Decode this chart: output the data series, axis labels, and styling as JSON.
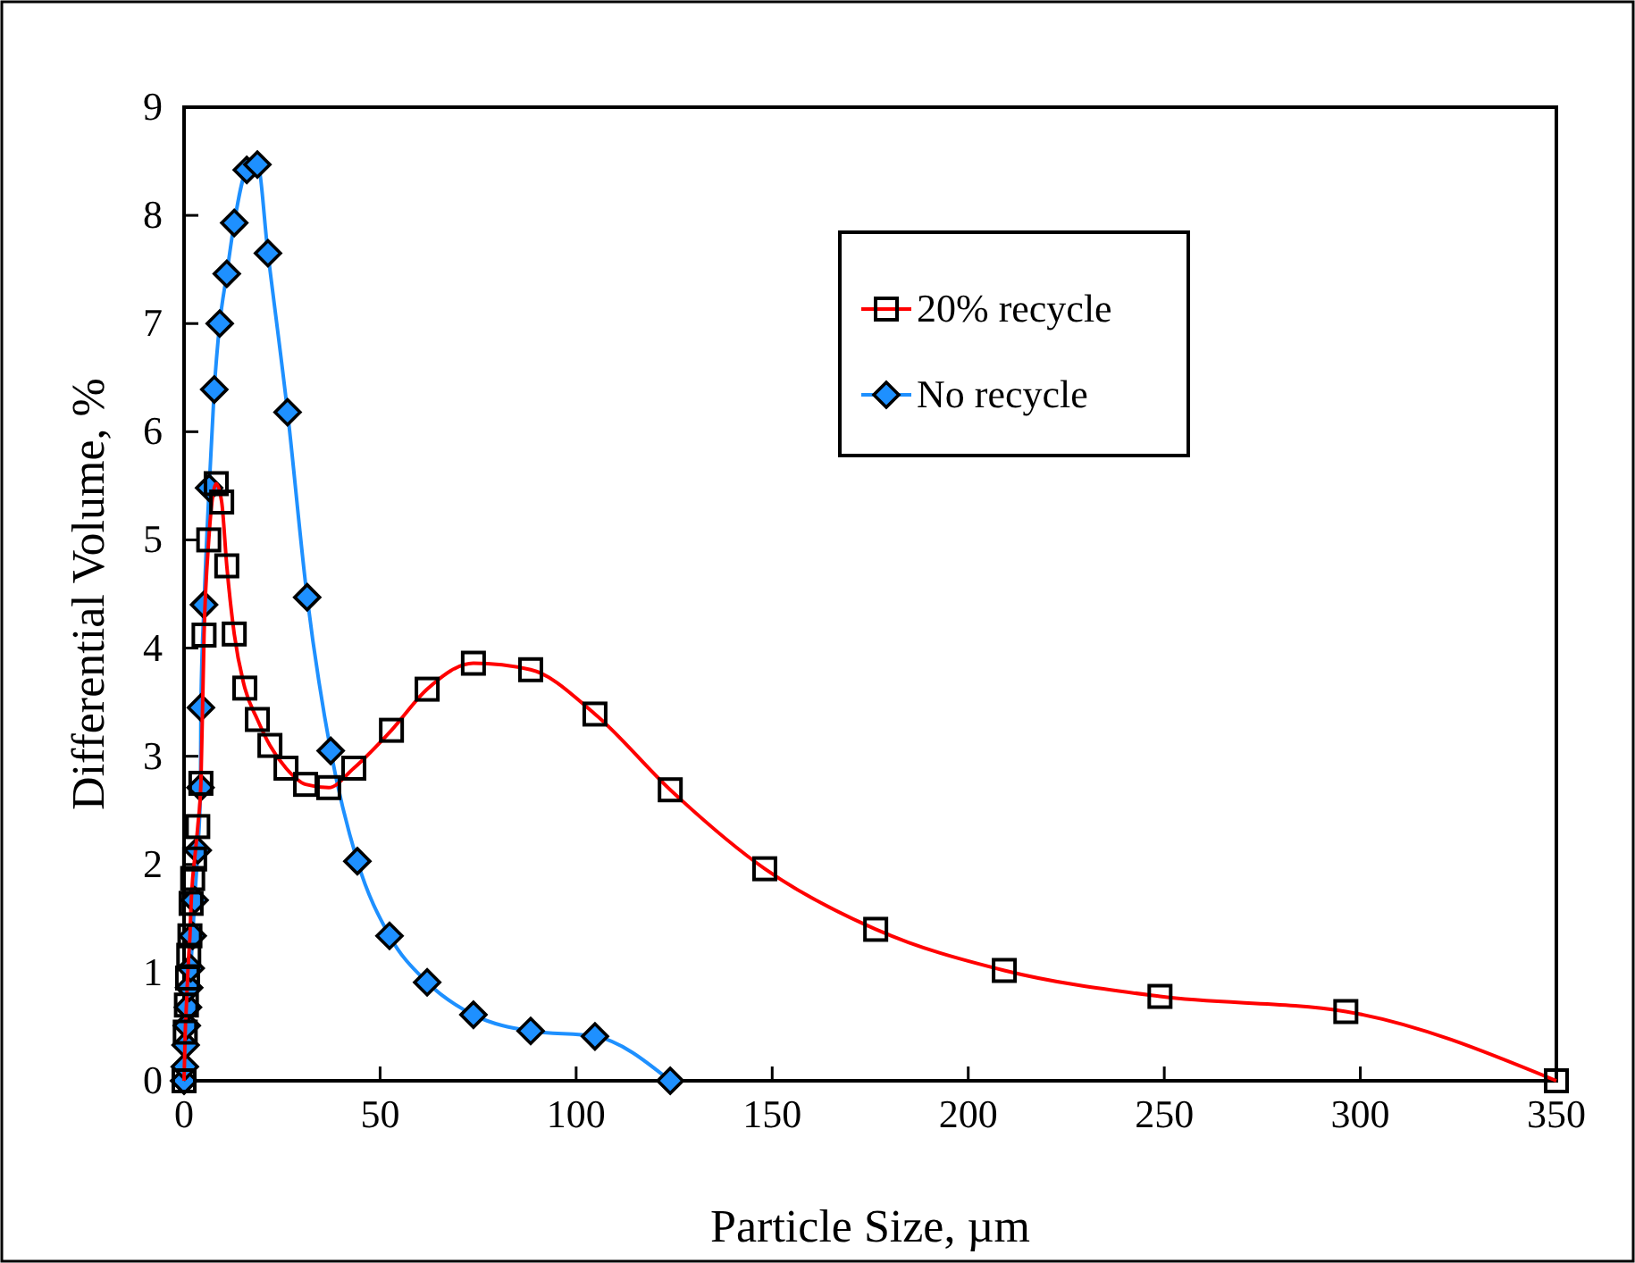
{
  "chart_data": {
    "type": "line",
    "xlabel": "Particle Size, µm",
    "ylabel": "Differential Volume, %",
    "xlim": [
      0,
      350
    ],
    "xticks": [
      0,
      50,
      100,
      150,
      200,
      250,
      300,
      350
    ],
    "ylim": [
      0,
      9
    ],
    "yticks": [
      0,
      1,
      2,
      3,
      4,
      5,
      6,
      7,
      8,
      9
    ],
    "grid": false,
    "legend": "top right",
    "series": [
      {
        "name": "20% recycle",
        "color": "#ff0000",
        "marker": "square",
        "x": [
          0,
          0.3,
          0.6,
          0.9,
          1.2,
          1.5,
          1.8,
          2.2,
          2.7,
          3.5,
          4.3,
          5.1,
          6.3,
          8.2,
          9.6,
          10.9,
          12.8,
          15.5,
          18.7,
          21.9,
          26,
          31,
          36.9,
          43.3,
          52.9,
          62,
          73.8,
          88.4,
          104.8,
          124,
          148.1,
          176.4,
          209.2,
          248.9,
          296.3,
          350
        ],
        "values": [
          0,
          0.45,
          0.7,
          0.95,
          1.16,
          1.34,
          1.64,
          1.87,
          2.05,
          2.35,
          2.75,
          4.12,
          5.0,
          5.52,
          5.35,
          4.76,
          4.13,
          3.63,
          3.34,
          3.1,
          2.89,
          2.74,
          2.71,
          2.89,
          3.24,
          3.62,
          3.86,
          3.8,
          3.39,
          2.69,
          1.96,
          1.4,
          1.02,
          0.78,
          0.64,
          0
        ]
      },
      {
        "name": "No recycle",
        "color": "#1e90ff",
        "marker": "diamond",
        "x": [
          0,
          0.2,
          0.4,
          0.7,
          1.0,
          1.3,
          1.7,
          2.2,
          2.7,
          3.5,
          4.2,
          4.3,
          5.1,
          6.4,
          7.7,
          9.1,
          10.9,
          12.8,
          16,
          18.7,
          21.4,
          26.4,
          31.4,
          37.4,
          44.2,
          52.4,
          62,
          73.8,
          88.4,
          104.8,
          124
        ],
        "values": [
          0,
          0.13,
          0.33,
          0.51,
          0.68,
          0.86,
          1.04,
          1.34,
          1.67,
          2.13,
          2.71,
          3.45,
          4.4,
          5.48,
          6.39,
          7.0,
          7.46,
          7.93,
          8.42,
          8.47,
          7.65,
          6.18,
          4.47,
          3.05,
          2.03,
          1.34,
          0.91,
          0.61,
          0.46,
          0.41,
          0
        ]
      }
    ]
  }
}
